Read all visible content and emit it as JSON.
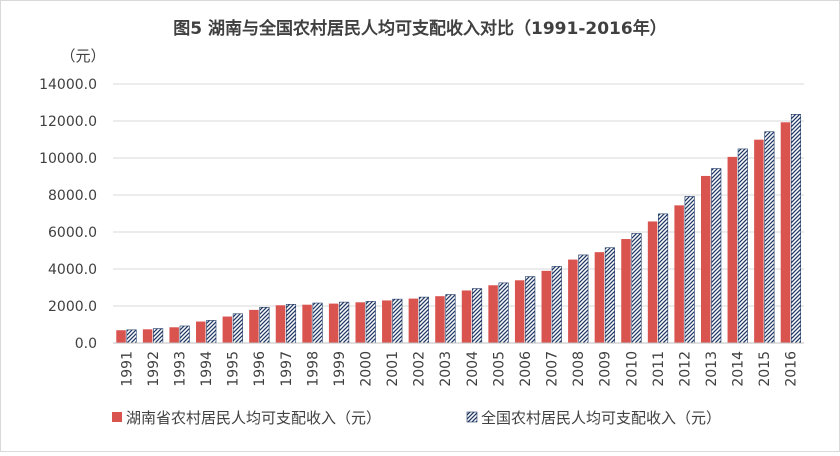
{
  "chart_data": {
    "type": "bar",
    "title": "图5 湖南与全国农村居民人均可支配收入对比（1991-2016年）",
    "ylabel": "（元）",
    "xlabel": "",
    "ylim": [
      0,
      14000
    ],
    "yticks": [
      "0.0",
      "2000.0",
      "4000.0",
      "6000.0",
      "8000.0",
      "10000.0",
      "12000.0",
      "14000.0"
    ],
    "grid": true,
    "legend_position": "bottom",
    "categories": [
      "1991",
      "1992",
      "1993",
      "1994",
      "1995",
      "1996",
      "1997",
      "1998",
      "1999",
      "2000",
      "2001",
      "2002",
      "2003",
      "2004",
      "2005",
      "2006",
      "2007",
      "2008",
      "2009",
      "2010",
      "2011",
      "2012",
      "2013",
      "2014",
      "2015",
      "2016"
    ],
    "series": [
      {
        "name": "湖南省农村居民人均可支配收入（元）",
        "color": "#d9534f",
        "pattern": "solid",
        "values": [
          690,
          740,
          850,
          1160,
          1430,
          1790,
          2040,
          2070,
          2130,
          2200,
          2300,
          2400,
          2530,
          2840,
          3120,
          3390,
          3900,
          4510,
          4910,
          5620,
          6570,
          7440,
          9030,
          10060,
          10990,
          11930
        ]
      },
      {
        "name": "全国农村居民人均可支配收入（元）",
        "color": "#1f3864",
        "pattern": "hatched",
        "values": [
          710,
          780,
          920,
          1220,
          1580,
          1930,
          2090,
          2160,
          2210,
          2250,
          2370,
          2480,
          2620,
          2940,
          3250,
          3590,
          4140,
          4760,
          5150,
          5920,
          6980,
          7920,
          9430,
          10490,
          11420,
          12360
        ]
      }
    ]
  }
}
